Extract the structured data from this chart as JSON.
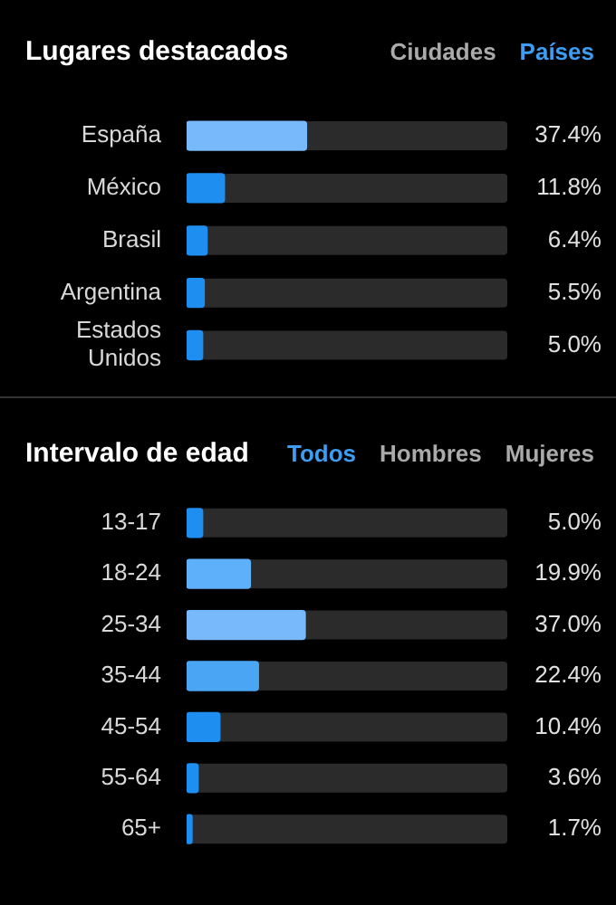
{
  "chart_data": [
    {
      "type": "bar",
      "orientation": "horizontal",
      "title": "Lugares destacados",
      "annotations": [
        "Ciudades",
        "Países"
      ],
      "categories": [
        "España",
        "México",
        "Brasil",
        "Argentina",
        "Estados Unidos"
      ],
      "values": [
        37.4,
        11.8,
        6.4,
        5.5,
        5.0
      ],
      "value_labels": [
        "37.4%",
        "11.8%",
        "6.4%",
        "5.5%",
        "5.0%"
      ],
      "colors": [
        "#77b9fb",
        "#1e8ff0",
        "#1e8ff0",
        "#1e8ff0",
        "#1e8ff0"
      ],
      "xlim": [
        0,
        100
      ],
      "tick_labels": "y",
      "legend": false
    },
    {
      "type": "bar",
      "orientation": "horizontal",
      "title": "Intervalo de edad",
      "annotations": [
        "Todos",
        "Hombres",
        "Mujeres"
      ],
      "categories": [
        "13-17",
        "18-24",
        "25-34",
        "35-44",
        "45-54",
        "55-64",
        "65+"
      ],
      "values": [
        5.0,
        19.9,
        37.0,
        22.4,
        10.4,
        3.6,
        1.7
      ],
      "value_labels": [
        "5.0%",
        "19.9%",
        "37.0%",
        "22.4%",
        "10.4%",
        "3.6%",
        "1.7%"
      ],
      "colors": [
        "#1e8ff0",
        "#5fb0fa",
        "#77b9fb",
        "#4aa6f5",
        "#1e8ff0",
        "#1e8ff0",
        "#1e8ff0"
      ],
      "xlim": [
        0,
        100
      ],
      "tick_labels": "y",
      "legend": false
    }
  ]
}
